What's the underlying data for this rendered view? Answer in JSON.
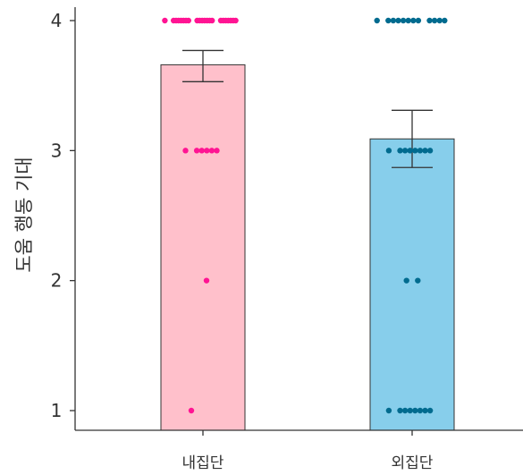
{
  "chart_data": {
    "type": "bar",
    "title": "",
    "xlabel": "",
    "ylabel": "도움 행동 기대",
    "ylim": [
      0.85,
      4.1
    ],
    "yticks": [
      1,
      2,
      3,
      4
    ],
    "categories": [
      "내집단",
      "외집단"
    ],
    "values": [
      3.66,
      3.09
    ],
    "error_bars": [
      {
        "lower": 3.53,
        "upper": 3.77
      },
      {
        "lower": 2.87,
        "upper": 3.31
      }
    ],
    "colors": {
      "bar_fills": [
        "#ffc0cb",
        "#87ceeb"
      ],
      "point_colors": [
        "#ff1493",
        "#006b8f"
      ],
      "axis": "#333333"
    },
    "points": [
      {
        "group": "내집단",
        "values": [
          4,
          4,
          4,
          4,
          4,
          4,
          4,
          4,
          4,
          4,
          4,
          4,
          4,
          4,
          4,
          4,
          4,
          4,
          4,
          4,
          4,
          4,
          3,
          3,
          3,
          3,
          3,
          3,
          2,
          1
        ]
      },
      {
        "group": "외집단",
        "values": [
          4,
          4,
          4,
          4,
          4,
          4,
          4,
          4,
          4,
          4,
          4,
          4,
          3,
          3,
          3,
          3,
          3,
          3,
          3,
          3,
          2,
          2,
          1,
          1,
          1,
          1,
          1,
          1,
          1,
          1
        ]
      }
    ],
    "grid": false,
    "legend": "none"
  }
}
